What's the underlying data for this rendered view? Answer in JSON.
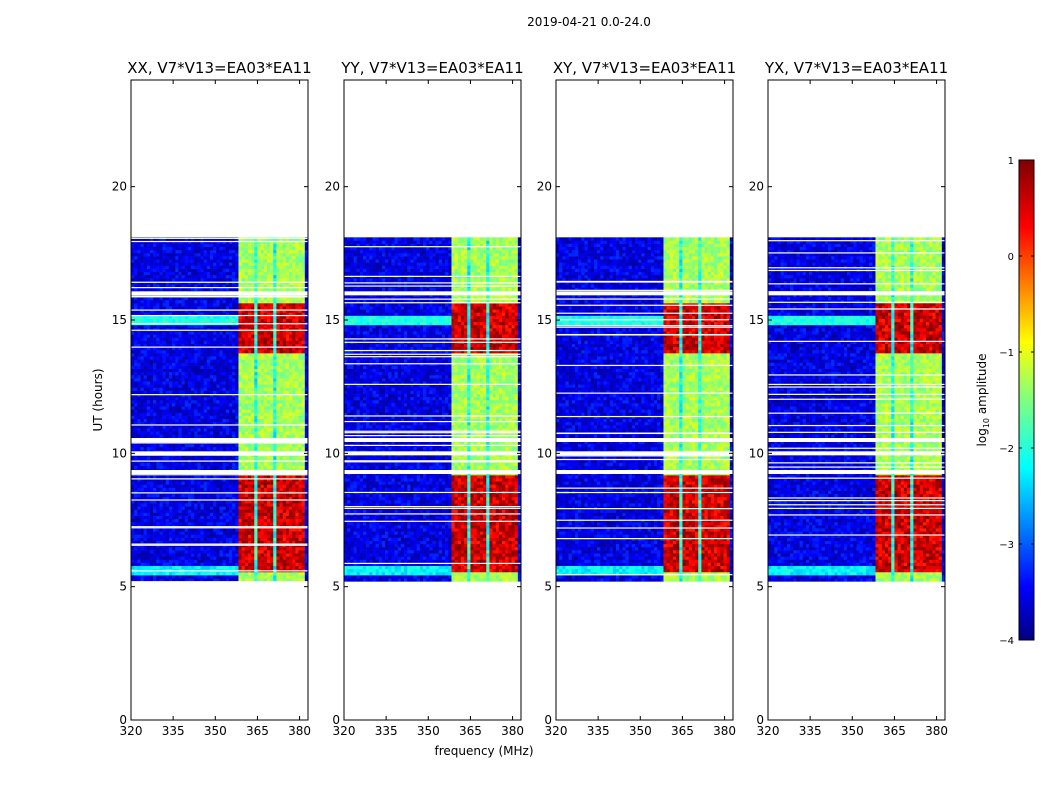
{
  "figure": {
    "suptitle": "2019-04-21 0.0-24.0",
    "xlabel": "frequency (MHz)",
    "ylabel": "UT (hours)",
    "colorbar": {
      "label_prefix": "log",
      "label_sub": "10",
      "label_suffix": " amplitude",
      "range": [
        -4,
        1
      ],
      "ticks": [
        -4,
        -3,
        -2,
        -1,
        0,
        1
      ],
      "tick_labels": [
        "−4",
        "−3",
        "−2",
        "−1",
        "0",
        "1"
      ],
      "colormap": "jet"
    }
  },
  "chart_data": [
    {
      "type": "heatmap",
      "title": "XX, V7*V13=EA03*EA11",
      "xlabel": "frequency (MHz)",
      "ylabel": "UT (hours)",
      "xlim": [
        320,
        383
      ],
      "ylim": [
        0,
        24
      ],
      "xticks": [
        320,
        335,
        350,
        365,
        380
      ],
      "yticks": [
        0,
        5,
        10,
        15,
        20
      ],
      "data_time_range": [
        5.2,
        18.1
      ],
      "bright_channels_mhz": [
        361,
        368,
        374,
        379
      ],
      "bright_time_blocks": [
        [
          5.5,
          9.2
        ],
        [
          13.8,
          15.6
        ]
      ],
      "peak_log10_amplitude": 0.8,
      "background_log10_amplitude": -3.5,
      "flagged_gaps_hours": [
        5.1,
        9.3,
        10.0,
        10.5,
        16.0
      ]
    },
    {
      "type": "heatmap",
      "title": "YY, V7*V13=EA03*EA11",
      "xlabel": "frequency (MHz)",
      "ylabel": "UT (hours)",
      "xlim": [
        320,
        383
      ],
      "ylim": [
        0,
        24
      ],
      "xticks": [
        320,
        335,
        350,
        365,
        380
      ],
      "yticks": [
        0,
        5,
        10,
        15,
        20
      ],
      "data_time_range": [
        5.2,
        18.1
      ],
      "bright_channels_mhz": [
        361,
        368,
        374,
        379
      ],
      "bright_time_blocks": [
        [
          5.5,
          9.2
        ],
        [
          13.8,
          15.6
        ]
      ],
      "peak_log10_amplitude": 0.8,
      "background_log10_amplitude": -3.5,
      "flagged_gaps_hours": [
        5.1,
        9.3,
        10.0,
        10.5,
        16.0
      ]
    },
    {
      "type": "heatmap",
      "title": "XY, V7*V13=EA03*EA11",
      "xlabel": "frequency (MHz)",
      "ylabel": "UT (hours)",
      "xlim": [
        320,
        383
      ],
      "ylim": [
        0,
        24
      ],
      "xticks": [
        320,
        335,
        350,
        365,
        380
      ],
      "yticks": [
        0,
        5,
        10,
        15,
        20
      ],
      "data_time_range": [
        5.2,
        18.1
      ],
      "bright_channels_mhz": [
        361,
        368,
        374,
        379
      ],
      "bright_time_blocks": [
        [
          5.5,
          9.2
        ],
        [
          13.8,
          15.6
        ]
      ],
      "peak_log10_amplitude": 0.8,
      "background_log10_amplitude": -3.5,
      "flagged_gaps_hours": [
        5.1,
        9.3,
        10.0,
        10.5,
        16.0
      ]
    },
    {
      "type": "heatmap",
      "title": "YX, V7*V13=EA03*EA11",
      "xlabel": "frequency (MHz)",
      "ylabel": "UT (hours)",
      "xlim": [
        320,
        383
      ],
      "ylim": [
        0,
        24
      ],
      "xticks": [
        320,
        335,
        350,
        365,
        380
      ],
      "yticks": [
        0,
        5,
        10,
        15,
        20
      ],
      "data_time_range": [
        5.2,
        18.1
      ],
      "bright_channels_mhz": [
        361,
        368,
        374,
        379
      ],
      "bright_time_blocks": [
        [
          5.5,
          9.2
        ],
        [
          13.8,
          15.6
        ]
      ],
      "peak_log10_amplitude": 0.8,
      "background_log10_amplitude": -3.5,
      "flagged_gaps_hours": [
        5.1,
        9.3,
        10.0,
        10.5,
        16.0
      ]
    }
  ]
}
